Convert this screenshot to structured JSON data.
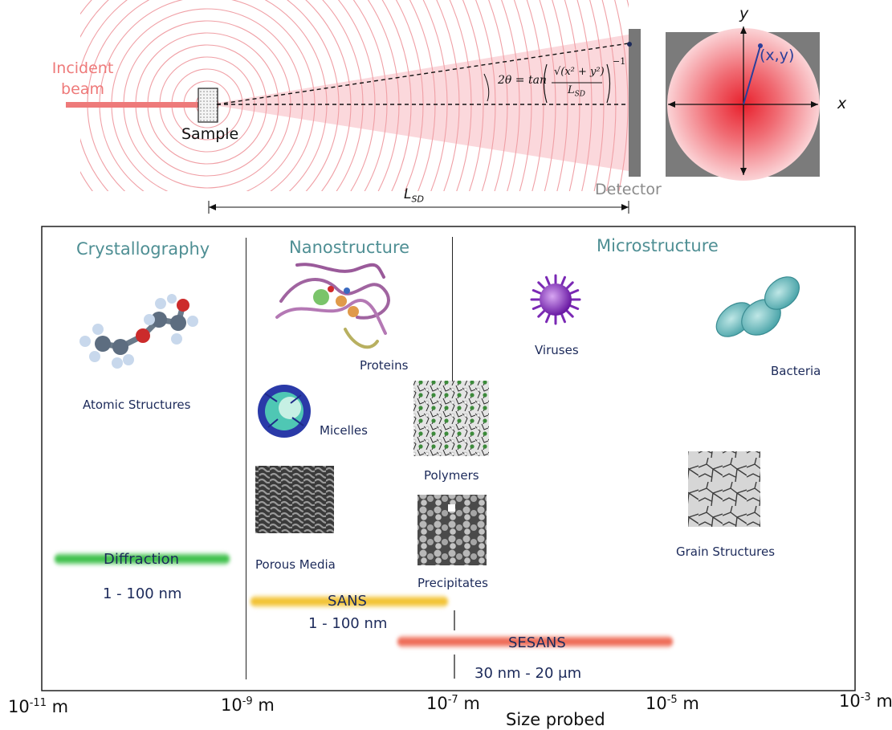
{
  "setup": {
    "incident_beam_line1": "Incident",
    "incident_beam_line2": "beam",
    "sample_label": "Sample",
    "detector_label": "Detector",
    "distance_label_main": "L",
    "distance_label_sub": "SD",
    "formula_left": "2θ = tan",
    "formula_numerator": "√(x² + y²)",
    "formula_denominator_main": "L",
    "formula_denominator_sub": "SD",
    "formula_exponent": "−1"
  },
  "detector_view": {
    "x_axis_label": "x",
    "y_axis_label": "y",
    "point_label": "(x,y)"
  },
  "regions": {
    "crystallography": "Crystallography",
    "nanostructure": "Nanostructure",
    "microstructure": "Microstructure"
  },
  "structures": {
    "atomic": "Atomic Structures",
    "proteins": "Proteins",
    "micelles": "Micelles",
    "polymers": "Polymers",
    "porous_media": "Porous Media",
    "precipitates": "Precipitates",
    "viruses": "Viruses",
    "bacteria": "Bacteria",
    "grain": "Grain Structures"
  },
  "techniques": {
    "diffraction": {
      "name": "Diffraction",
      "range": "1 - 100 nm",
      "color": "#3ec04a"
    },
    "sans": {
      "name": "SANS",
      "range": "1 - 100 nm",
      "color": "#f2c232"
    },
    "sesans": {
      "name": "SESANS",
      "range": "30 nm - 20 μm",
      "color": "#ee6a55"
    }
  },
  "axis": {
    "ticks": [
      {
        "base": "10",
        "exp": "-11",
        "unit": " m"
      },
      {
        "base": "10",
        "exp": "-9",
        "unit": " m"
      },
      {
        "base": "10",
        "exp": "-7",
        "unit": " m"
      },
      {
        "base": "10",
        "exp": "-5",
        "unit": " m"
      },
      {
        "base": "10",
        "exp": "-3",
        "unit": " m"
      }
    ],
    "label": "Size probed"
  },
  "colors": {
    "beam": "#ee7a7a",
    "wave": "#f0a0a6",
    "cone": "#fbd8dc",
    "detector": "#777777",
    "navy": "#1c2a5a",
    "teal": "#4f8f94"
  }
}
